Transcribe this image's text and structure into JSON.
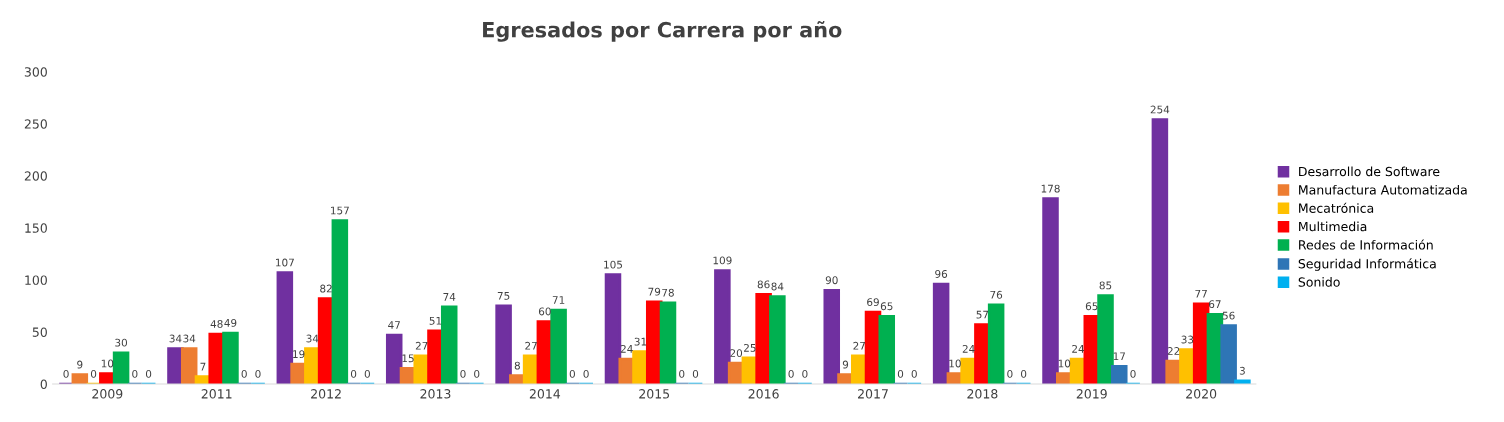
{
  "chart_data": {
    "type": "bar",
    "title": "Egresados por Carrera por año",
    "categories": [
      "2009",
      "2011",
      "2012",
      "2013",
      "2014",
      "2015",
      "2016",
      "2017",
      "2018",
      "2019",
      "2020"
    ],
    "series": [
      {
        "name": "Desarrollo de Software",
        "color": "#7030a0",
        "values": [
          0,
          34,
          107,
          47,
          75,
          105,
          109,
          90,
          96,
          178,
          254
        ]
      },
      {
        "name": "Manufactura Automatizada",
        "color": "#ed7d31",
        "values": [
          9,
          34,
          19,
          15,
          8,
          24,
          20,
          9,
          10,
          10,
          22
        ]
      },
      {
        "name": "Mecatrónica",
        "color": "#ffc000",
        "values": [
          0,
          7,
          34,
          27,
          27,
          31,
          25,
          27,
          24,
          24,
          33
        ]
      },
      {
        "name": "Multimedia",
        "color": "#ff0000",
        "values": [
          10,
          48,
          82,
          51,
          60,
          79,
          86,
          69,
          57,
          65,
          77
        ]
      },
      {
        "name": "Redes de Información",
        "color": "#00b050",
        "values": [
          30,
          49,
          157,
          74,
          71,
          78,
          84,
          65,
          76,
          85,
          67
        ]
      },
      {
        "name": "Seguridad Informática",
        "color": "#2e75b6",
        "values": [
          0,
          0,
          0,
          0,
          0,
          0,
          0,
          0,
          0,
          17,
          56
        ]
      },
      {
        "name": "Sonido",
        "color": "#00b0f0",
        "values": [
          0,
          0,
          0,
          0,
          0,
          0,
          0,
          0,
          0,
          0,
          3
        ]
      }
    ],
    "ylim": [
      0,
      300
    ],
    "yticks": [
      0,
      50,
      100,
      150,
      200,
      250,
      300
    ],
    "grid": false,
    "legend": "right",
    "data_labels": true
  }
}
